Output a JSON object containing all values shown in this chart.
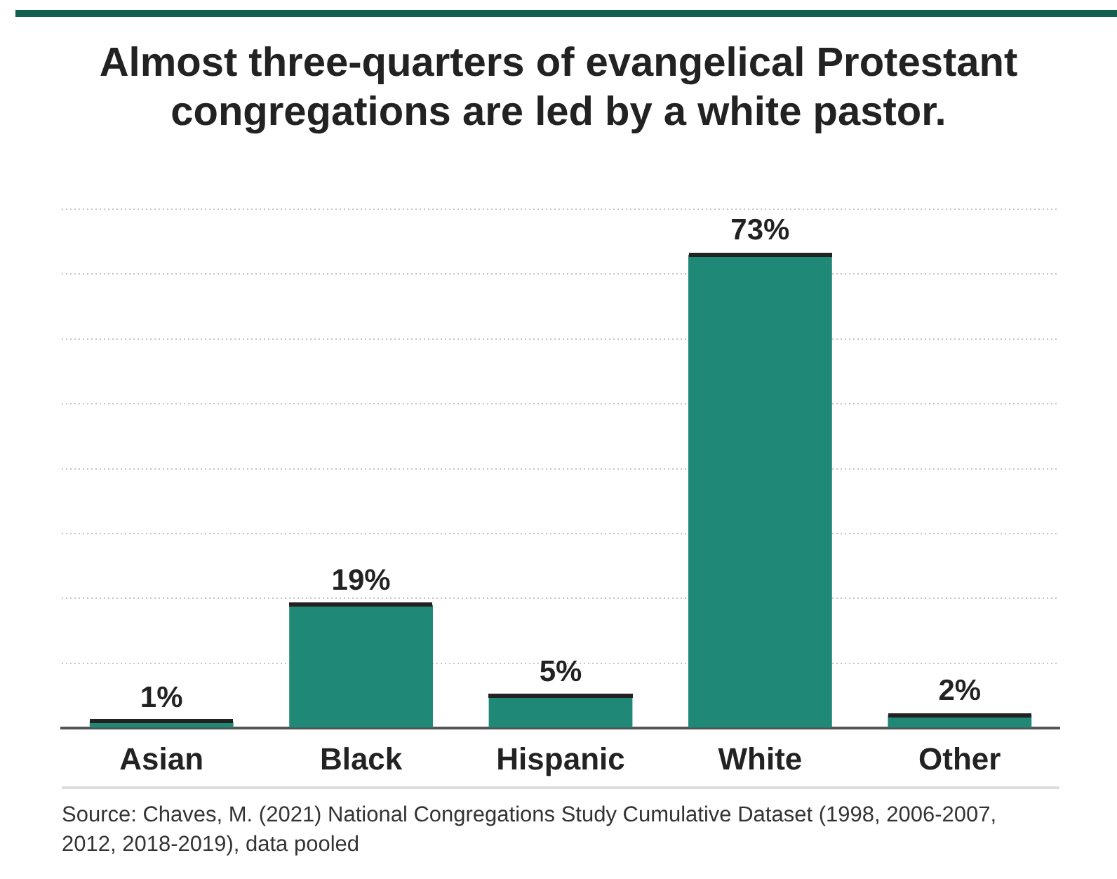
{
  "chart_data": {
    "type": "bar",
    "title": "Almost three-quarters of evangelical Protestant congregations are led by a white pastor.",
    "categories": [
      "Asian",
      "Black",
      "Hispanic",
      "White",
      "Other"
    ],
    "values": [
      1,
      19,
      5,
      73,
      2
    ],
    "color": "#1f8877",
    "value_labels": [
      "1%",
      "19%",
      "5%",
      "73%",
      "2%"
    ],
    "tick_labels": "x",
    "grid": "y",
    "annotations": [
      "Source: Chaves, M. (2021) National Congregations Study Cumulative Dataset (1998, 2006-2007, 2012, 2018-2019), data pooled"
    ]
  }
}
